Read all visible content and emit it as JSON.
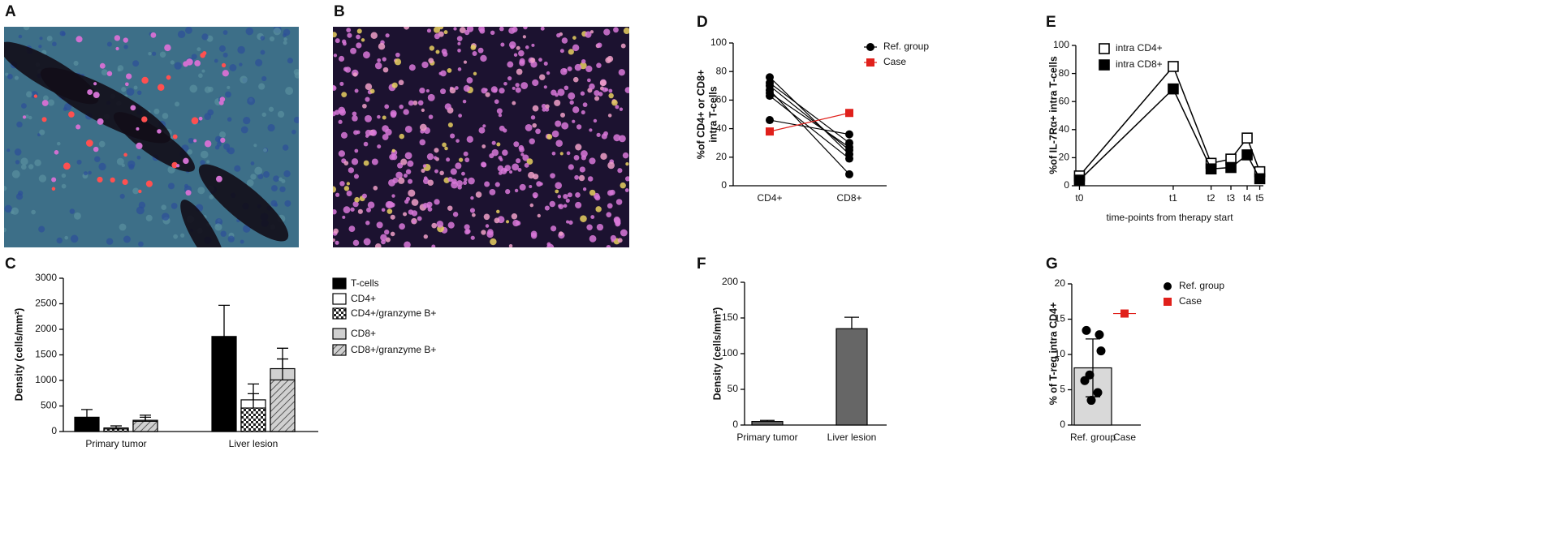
{
  "images": [
    {
      "panel": "A"
    },
    {
      "panel": "B"
    }
  ],
  "chart_data": [
    {
      "type": "bar",
      "panel": "C",
      "ylabel": "Density (cells/mm²)",
      "categories": [
        "Primary tumor",
        "Liver lesion"
      ],
      "ylim": [
        0,
        3000
      ],
      "yticks": [
        0,
        500,
        1000,
        1500,
        2000,
        2500,
        3000
      ],
      "series": [
        {
          "name": "T-cells",
          "color": "#000000",
          "pattern": "solid",
          "values": [
            280,
            1860
          ],
          "errors": [
            150,
            610
          ]
        },
        {
          "name": "CD4+",
          "color": "#ffffff",
          "pattern": "solid",
          "values": [
            70,
            620
          ],
          "errors": [
            40,
            310
          ]
        },
        {
          "name": "CD4+/granzyme B+",
          "color": "#ffffff",
          "pattern": "checker",
          "values": [
            50,
            460
          ],
          "errors": [
            20,
            280
          ]
        },
        {
          "name": "CD8+",
          "color": "#d0d0d0",
          "pattern": "solid",
          "values": [
            220,
            1230
          ],
          "errors": [
            100,
            400
          ]
        },
        {
          "name": "CD8+/granzyme B+",
          "color": "#d0d0d0",
          "pattern": "hatch",
          "values": [
            200,
            1010
          ],
          "errors": [
            80,
            410
          ]
        }
      ]
    },
    {
      "type": "line",
      "panel": "D",
      "ylabel": [
        "%of CD4+ or CD8+",
        "intra T-cells"
      ],
      "categories": [
        "CD4+",
        "CD8+"
      ],
      "ylim": [
        0,
        100
      ],
      "yticks": [
        0,
        20,
        40,
        60,
        80,
        100
      ],
      "series": [
        {
          "name": "Ref. group",
          "color": "#000000",
          "values": [
            [
              76,
              22
            ],
            [
              72,
              30
            ],
            [
              70,
              25
            ],
            [
              67,
              8
            ],
            [
              65,
              27
            ],
            [
              63,
              19
            ],
            [
              46,
              36
            ]
          ]
        },
        {
          "name": "Case",
          "color": "#e0201b",
          "values": [
            [
              38,
              51
            ]
          ]
        }
      ]
    },
    {
      "type": "line",
      "panel": "E",
      "ylabel": "%of IL-7Rα+ intra T-cells",
      "xlabel": "time-points from therapy start",
      "x": [
        0,
        52,
        73,
        84,
        93,
        100
      ],
      "xlim": [
        -2,
        102
      ],
      "xticks": [
        {
          "value": 0,
          "label": "t0"
        },
        {
          "value": 52,
          "label": "t1"
        },
        {
          "value": 73,
          "label": "t2"
        },
        {
          "value": 84,
          "label": "t3"
        },
        {
          "value": 93,
          "label": "t4"
        },
        {
          "value": 100,
          "label": "t5"
        }
      ],
      "ylim": [
        0,
        100
      ],
      "yticks": [
        0,
        20,
        40,
        60,
        80,
        100
      ],
      "series": [
        {
          "name": "intra CD4+",
          "color": "#ffffff",
          "values": [
            7,
            85,
            16,
            19,
            34,
            10
          ]
        },
        {
          "name": "intra CD8+",
          "color": "#000000",
          "values": [
            4,
            69,
            12,
            13,
            22,
            5
          ]
        }
      ]
    },
    {
      "type": "bar",
      "panel": "F",
      "ylabel": "Density (cells/mm²)",
      "categories": [
        "Primary tumor",
        "Liver lesion"
      ],
      "values": [
        5,
        135
      ],
      "errors": [
        1.5,
        16
      ],
      "color": "#666666",
      "ylim": [
        0,
        200
      ],
      "yticks": [
        0,
        50,
        100,
        150,
        200
      ]
    },
    {
      "type": "scatter",
      "panel": "G",
      "ylabel": "% of T-reg intra CD4+",
      "categories": [
        "Ref. group",
        "Case"
      ],
      "bar_values": [
        8.1,
        null
      ],
      "bar_errors": [
        4.1,
        null
      ],
      "bar_color": "#d9d9d9",
      "ylim": [
        0,
        20
      ],
      "yticks": [
        0,
        5,
        10,
        15,
        20
      ],
      "series": [
        {
          "name": "Ref. group",
          "color": "#000000",
          "values": [
            13.4,
            12.8,
            10.5,
            7.1,
            6.3,
            4.6,
            3.5
          ]
        },
        {
          "name": "Case",
          "color": "#e0201b",
          "values": [
            15.8
          ]
        }
      ]
    }
  ]
}
